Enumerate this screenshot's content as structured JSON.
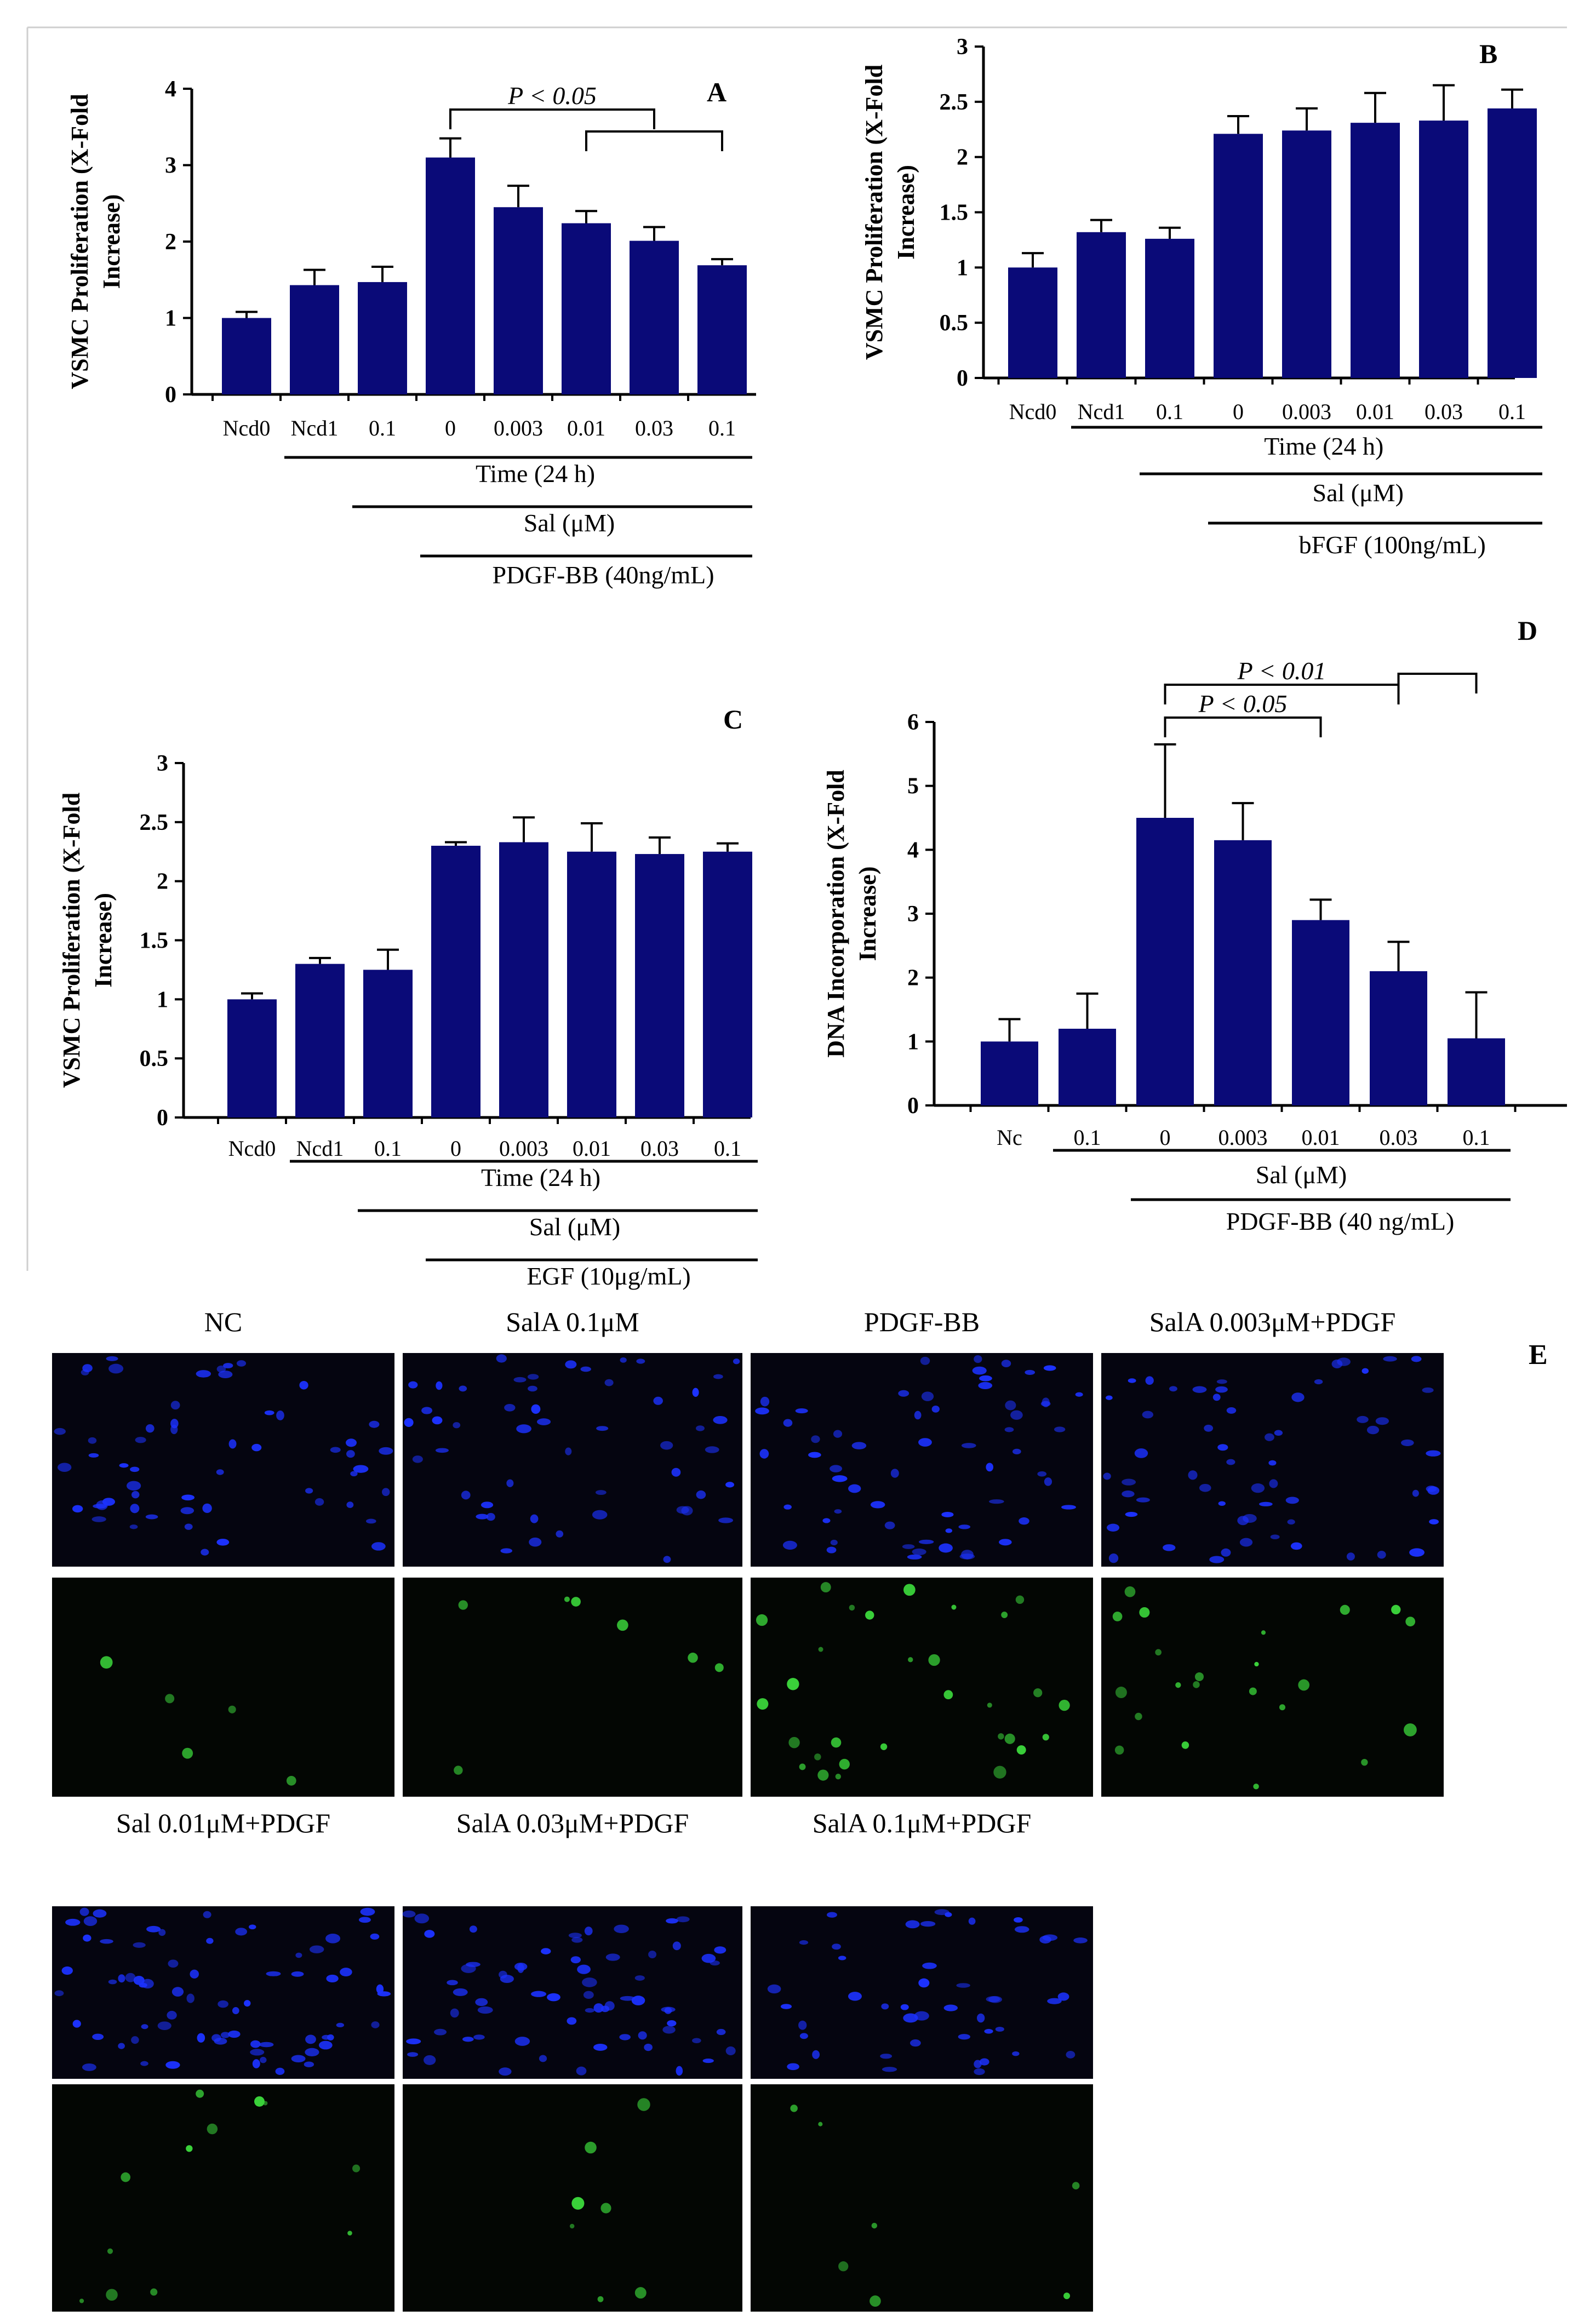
{
  "chart_data": [
    {
      "panel": "A",
      "type": "bar",
      "ylabel": "VSMC Proliferation (X-Fold Increase)",
      "ylim": [
        0,
        4
      ],
      "yticks": [
        "0",
        "1",
        "2",
        "3",
        "4"
      ],
      "categories": [
        "Ncd0",
        "Ncd1",
        "0.1",
        "0",
        "0.003",
        "0.01",
        "0.03",
        "0.1"
      ],
      "values": [
        1.0,
        1.43,
        1.47,
        3.1,
        2.45,
        2.24,
        2.01,
        1.69
      ],
      "errors": [
        0.08,
        0.2,
        0.2,
        0.25,
        0.28,
        0.16,
        0.18,
        0.08
      ],
      "significance": [
        {
          "label": "P < 0.05",
          "from": 3,
          "to": 6
        },
        {
          "label": "",
          "from": 5,
          "to": 7
        }
      ],
      "x_groups": [
        {
          "label": "Time (24 h)",
          "from": 1,
          "to": 7
        },
        {
          "label": "Sal (μM)",
          "from": 2,
          "to": 7
        },
        {
          "label": "PDGF-BB (40ng/mL)",
          "from": 3,
          "to": 7
        }
      ]
    },
    {
      "panel": "B",
      "type": "bar",
      "ylabel": "VSMC Proliferation (X-Fold Increase)",
      "ylim": [
        0,
        3
      ],
      "yticks": [
        "0",
        "0.5",
        "1",
        "1.5",
        "2",
        "2.5",
        "3"
      ],
      "categories": [
        "Ncd0",
        "Ncd1",
        "0.1",
        "0",
        "0.003",
        "0.01",
        "0.03",
        "0.1"
      ],
      "values": [
        1.0,
        1.32,
        1.26,
        2.21,
        2.24,
        2.31,
        2.33,
        2.44
      ],
      "errors": [
        0.13,
        0.11,
        0.1,
        0.16,
        0.2,
        0.27,
        0.32,
        0.17
      ],
      "x_groups": [
        {
          "label": "Time (24 h)",
          "from": 1,
          "to": 7
        },
        {
          "label": "Sal (μM)",
          "from": 2,
          "to": 7
        },
        {
          "label": "bFGF (100ng/mL)",
          "from": 3,
          "to": 7
        }
      ]
    },
    {
      "panel": "C",
      "type": "bar",
      "ylabel": "VSMC Proliferation (X-Fold Increase)",
      "ylim": [
        0,
        3
      ],
      "yticks": [
        "0",
        "0.5",
        "1",
        "1.5",
        "2",
        "2.5",
        "3"
      ],
      "categories": [
        "Ncd0",
        "Ncd1",
        "0.1",
        "0",
        "0.003",
        "0.01",
        "0.03",
        "0.1"
      ],
      "values": [
        1.0,
        1.3,
        1.25,
        2.3,
        2.33,
        2.25,
        2.23,
        2.25
      ],
      "errors": [
        0.05,
        0.05,
        0.17,
        0.03,
        0.21,
        0.24,
        0.14,
        0.07
      ],
      "x_groups": [
        {
          "label": "Time (24 h)",
          "from": 1,
          "to": 7
        },
        {
          "label": "Sal (μM)",
          "from": 2,
          "to": 7
        },
        {
          "label": "EGF (10μg/mL)",
          "from": 3,
          "to": 7
        }
      ]
    },
    {
      "panel": "D",
      "type": "bar",
      "ylabel": "DNA Incorporation (X-Fold Increase)",
      "ylim": [
        0,
        6
      ],
      "yticks": [
        "0",
        "1",
        "2",
        "3",
        "4",
        "5",
        "6"
      ],
      "categories": [
        "Nc",
        "0.1",
        "0",
        "0.003",
        "0.01",
        "0.03",
        "0.1"
      ],
      "values": [
        1.0,
        1.2,
        4.5,
        4.15,
        2.9,
        2.1,
        1.05
      ],
      "errors": [
        0.35,
        0.55,
        1.15,
        0.58,
        0.32,
        0.46,
        0.72
      ],
      "significance": [
        {
          "label": "P < 0.05",
          "from": 2,
          "to": 4
        },
        {
          "label": "P < 0.01",
          "from": 2,
          "to": 5
        },
        {
          "label": "",
          "from": 5,
          "to": 6
        }
      ],
      "x_groups": [
        {
          "label": "Sal (μM)",
          "from": 1,
          "to": 6
        },
        {
          "label": "PDGF-BB (40 ng/mL)",
          "from": 2,
          "to": 6
        }
      ]
    }
  ],
  "colors": {
    "bar": "#0a0a78",
    "blue_stain": "#1c32ff",
    "green_stain": "#3ad23a"
  },
  "micrographs": {
    "panel": "E",
    "groups": [
      {
        "label": "NC",
        "blue_cells": 55,
        "green_cells": 5
      },
      {
        "label": "SalA 0.1μM",
        "blue_cells": 50,
        "green_cells": 7
      },
      {
        "label": "PDGF-BB",
        "blue_cells": 60,
        "green_cells": 30
      },
      {
        "label": "SalA 0.003μM+PDGF",
        "blue_cells": 60,
        "green_cells": 22
      },
      {
        "label": "Sal 0.01μM+PDGF",
        "blue_cells": 70,
        "green_cells": 12
      },
      {
        "label": "SalA 0.03μM+PDGF",
        "blue_cells": 65,
        "green_cells": 7
      },
      {
        "label": "SalA 0.1μM+PDGF",
        "blue_cells": 45,
        "green_cells": 7
      }
    ]
  }
}
